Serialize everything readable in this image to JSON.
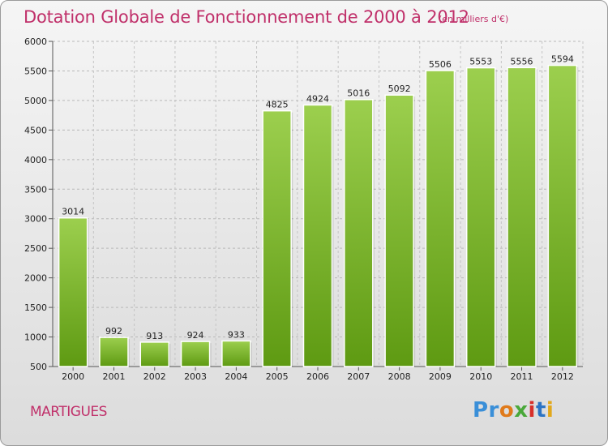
{
  "chart_data": {
    "type": "bar",
    "title": "Dotation Globale de Fonctionnement de 2000 à 2012",
    "subtitle": "(en milliers d'€)",
    "categories": [
      "2000",
      "2001",
      "2002",
      "2003",
      "2004",
      "2005",
      "2006",
      "2007",
      "2008",
      "2009",
      "2010",
      "2011",
      "2012"
    ],
    "values": [
      3014,
      992,
      913,
      924,
      933,
      4825,
      4924,
      5016,
      5092,
      5506,
      5553,
      5556,
      5594
    ],
    "ylim": [
      500,
      6000
    ],
    "yticks": [
      500,
      1000,
      1500,
      2000,
      2500,
      3000,
      3500,
      4000,
      4500,
      5000,
      5500,
      6000
    ],
    "grid": true,
    "colors": {
      "bar_top": "#9ccf4e",
      "bar_bottom": "#5e9a12",
      "title": "#c0306a"
    }
  },
  "footer": {
    "commune": "MARTIGUES",
    "logo": [
      "Pr",
      "o",
      "x",
      "i",
      "t",
      "i"
    ]
  }
}
